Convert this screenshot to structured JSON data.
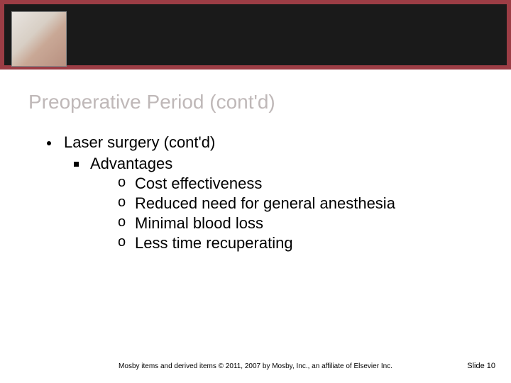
{
  "header": {
    "band_color": "#9c3d45",
    "inner_color": "#1a1a1a"
  },
  "title": "Preoperative Period (cont'd)",
  "content": {
    "level1": "Laser surgery (cont'd)",
    "level2": "Advantages",
    "level3": [
      "Cost effectiveness",
      "Reduced need for general anesthesia",
      "Minimal blood loss",
      "Less time recuperating"
    ]
  },
  "footer": {
    "copyright": "Mosby items and derived items © 2011, 2007 by Mosby, Inc., an affiliate of Elsevier Inc.",
    "slide_label": "Slide 10"
  }
}
